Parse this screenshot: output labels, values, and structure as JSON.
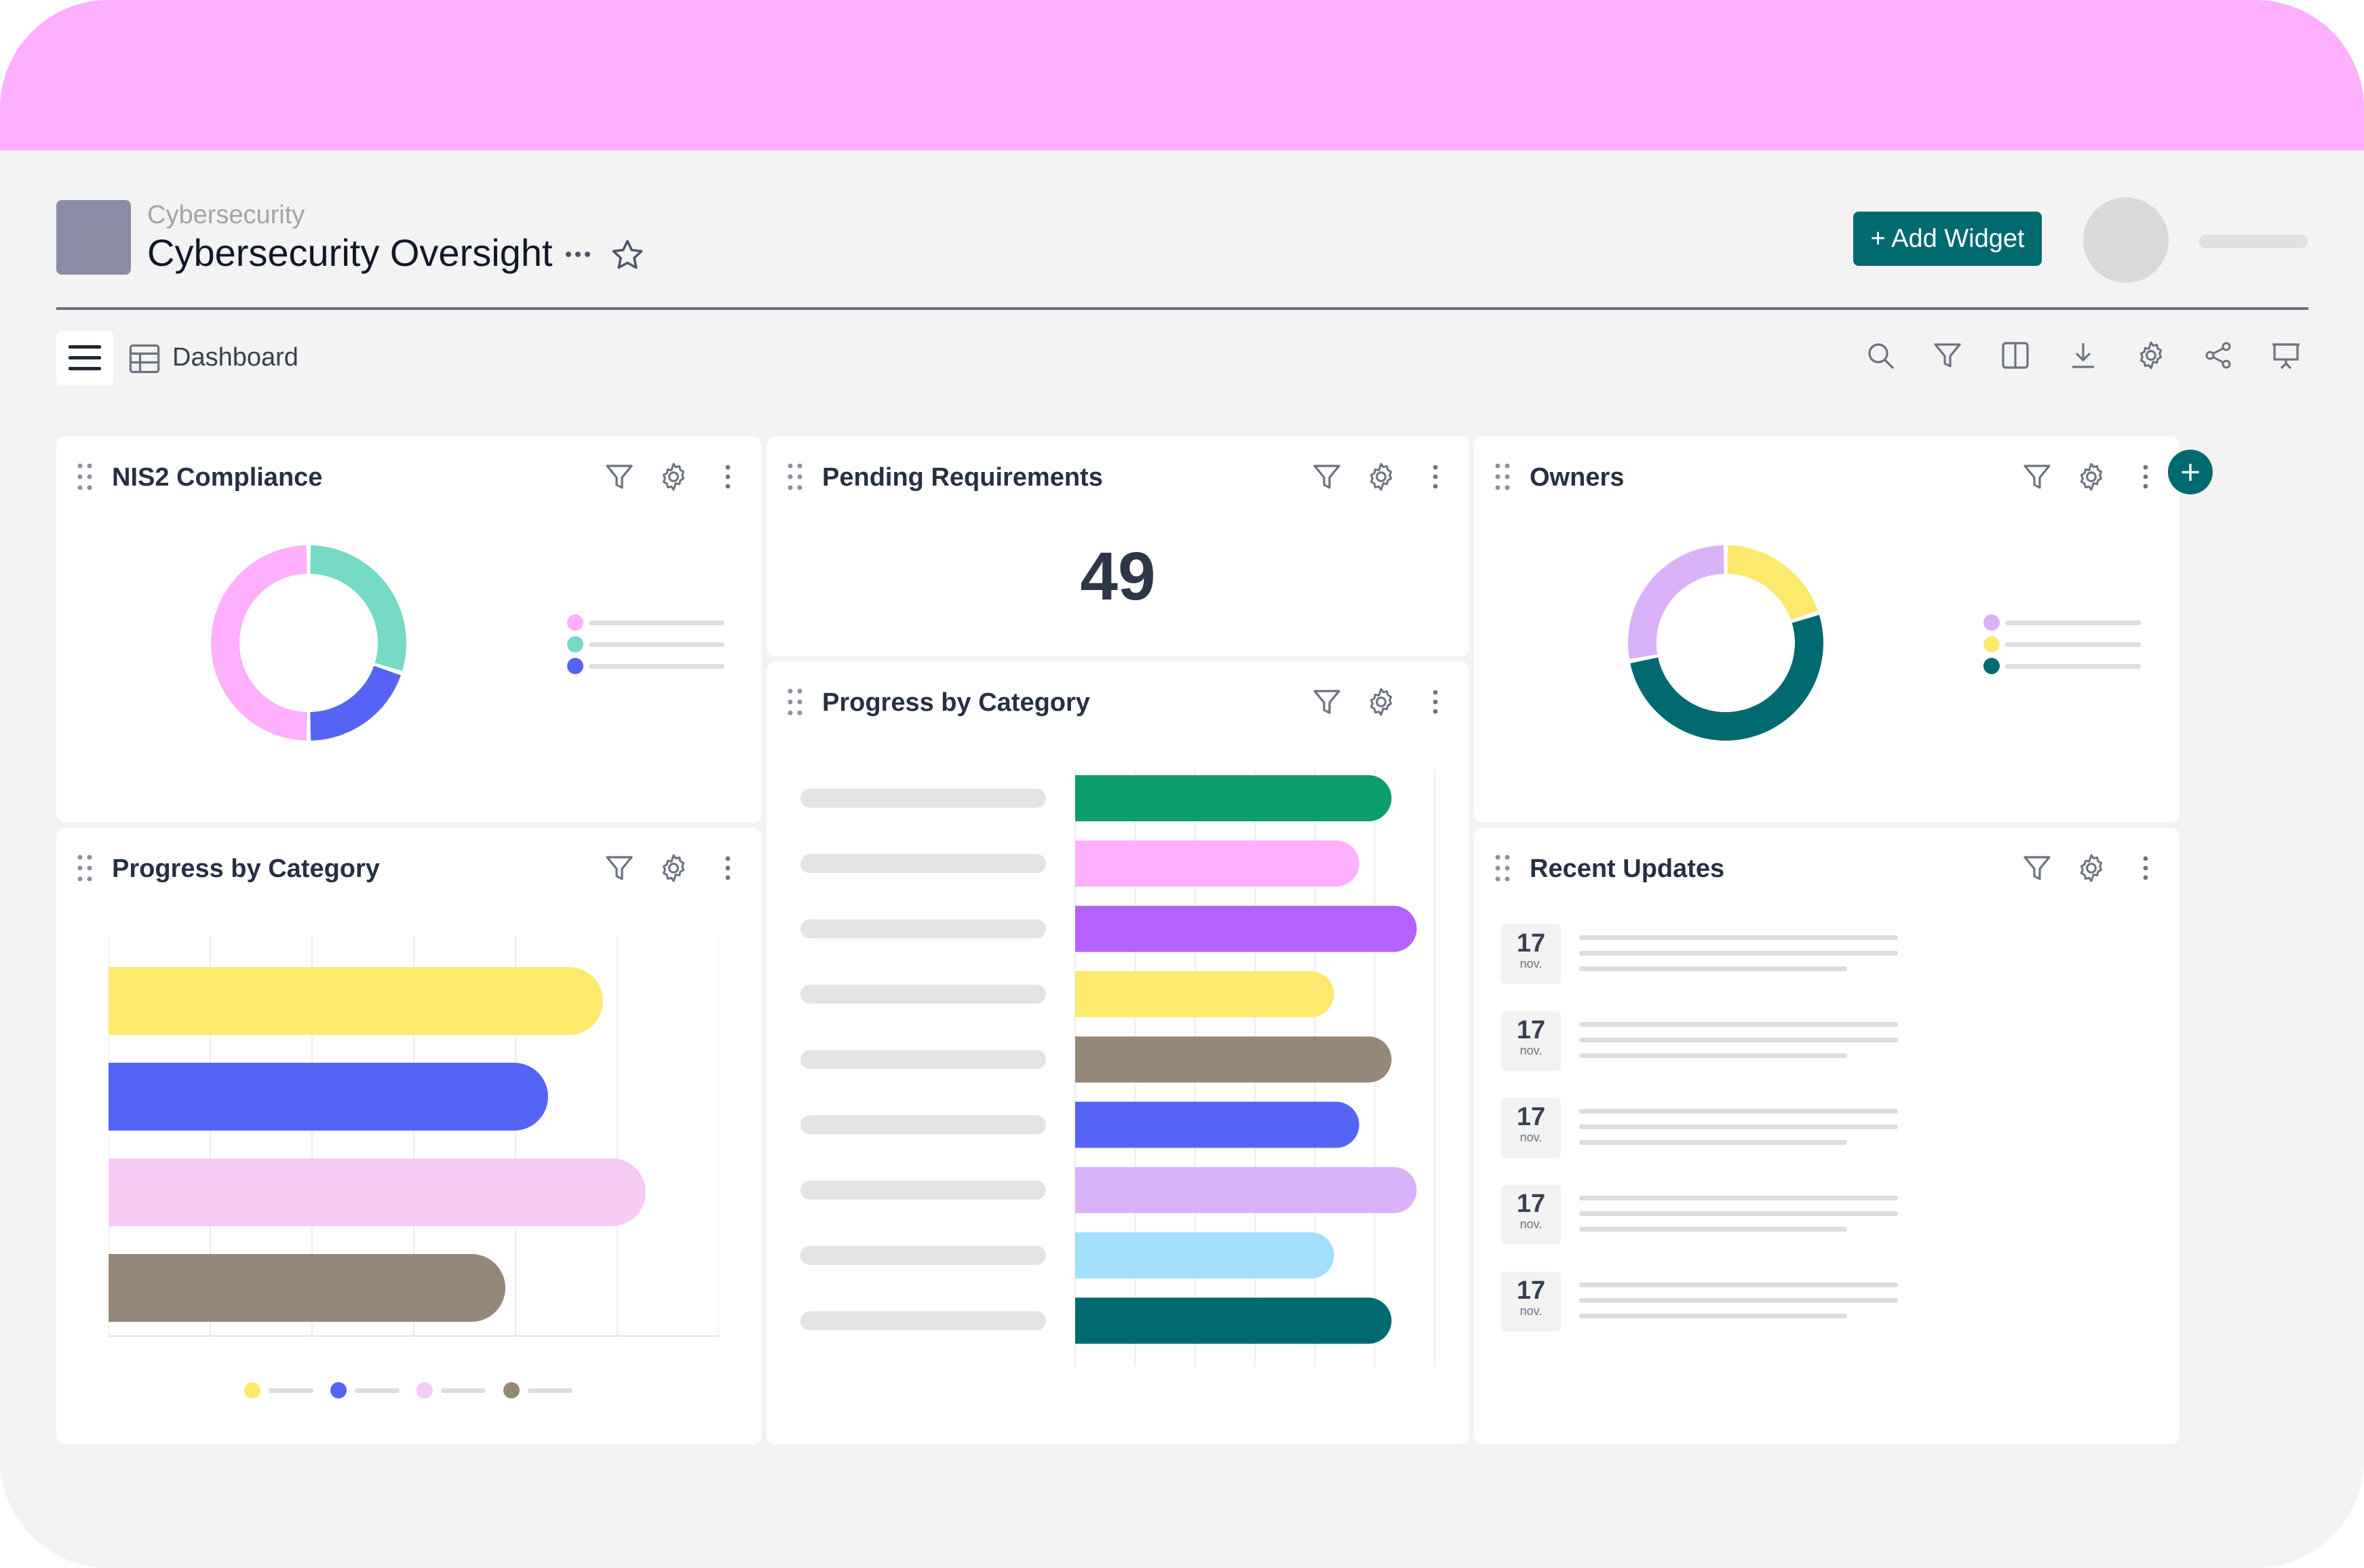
{
  "header": {
    "breadcrumb": "Cybersecurity",
    "title": "Cybersecurity Oversight",
    "add_widget_label": "+ Add Widget",
    "more_icon": "ellipsis-icon",
    "favorite_icon": "star-icon"
  },
  "toolbar": {
    "view_label": "Dashboard",
    "icons": [
      "search-icon",
      "filter-icon",
      "columns-icon",
      "download-icon",
      "settings-icon",
      "share-icon",
      "presentation-icon"
    ]
  },
  "colors": {
    "accent": "#006a70",
    "top_band": "#feb0fe",
    "page_background": "#f3f3f3"
  },
  "widgets": {
    "nis2": {
      "title": "NIS2 Compliance",
      "chart_data": {
        "type": "pie",
        "donut": true,
        "slices": [
          {
            "value": 30,
            "color": "#76d9c5"
          },
          {
            "value": 20,
            "color": "#5564f5"
          },
          {
            "value": 50,
            "color": "#feb0fe"
          }
        ],
        "legend_placement": "right"
      }
    },
    "pending": {
      "title": "Pending Requirements",
      "value": "49"
    },
    "owners": {
      "title": "Owners",
      "chart_data": {
        "type": "pie",
        "donut": true,
        "slices": [
          {
            "value": 20,
            "color": "#fde96e"
          },
          {
            "value": 52,
            "color": "#006a70"
          },
          {
            "value": 28,
            "color": "#dab2fa"
          }
        ],
        "legend_placement": "right"
      }
    },
    "progress_small": {
      "title": "Progress by Category",
      "chart_data": {
        "type": "bar",
        "orientation": "horizontal",
        "values": [
          0.81,
          0.72,
          0.88,
          0.65
        ],
        "colors": [
          "#fde96e",
          "#5564f5",
          "#f6cbf5",
          "#968878"
        ],
        "xlim": [
          0,
          1
        ],
        "grid": true,
        "legend_placement": "bottom"
      }
    },
    "progress_large": {
      "title": "Progress by Category",
      "chart_data": {
        "type": "bar",
        "orientation": "horizontal",
        "values": [
          0.88,
          0.79,
          0.95,
          0.72,
          0.88,
          0.79,
          0.95,
          0.72,
          0.88
        ],
        "colors": [
          "#0d9c6c",
          "#feb0fe",
          "#b362fd",
          "#fde96e",
          "#968878",
          "#5564f5",
          "#dab2fa",
          "#a2dffb",
          "#006a70"
        ],
        "xlim": [
          0,
          1
        ],
        "grid": true
      }
    },
    "updates": {
      "title": "Recent Updates",
      "items": [
        {
          "day": "17",
          "month": "nov."
        },
        {
          "day": "17",
          "month": "nov."
        },
        {
          "day": "17",
          "month": "nov."
        },
        {
          "day": "17",
          "month": "nov."
        },
        {
          "day": "17",
          "month": "nov."
        }
      ]
    }
  },
  "add_button_label": "+"
}
